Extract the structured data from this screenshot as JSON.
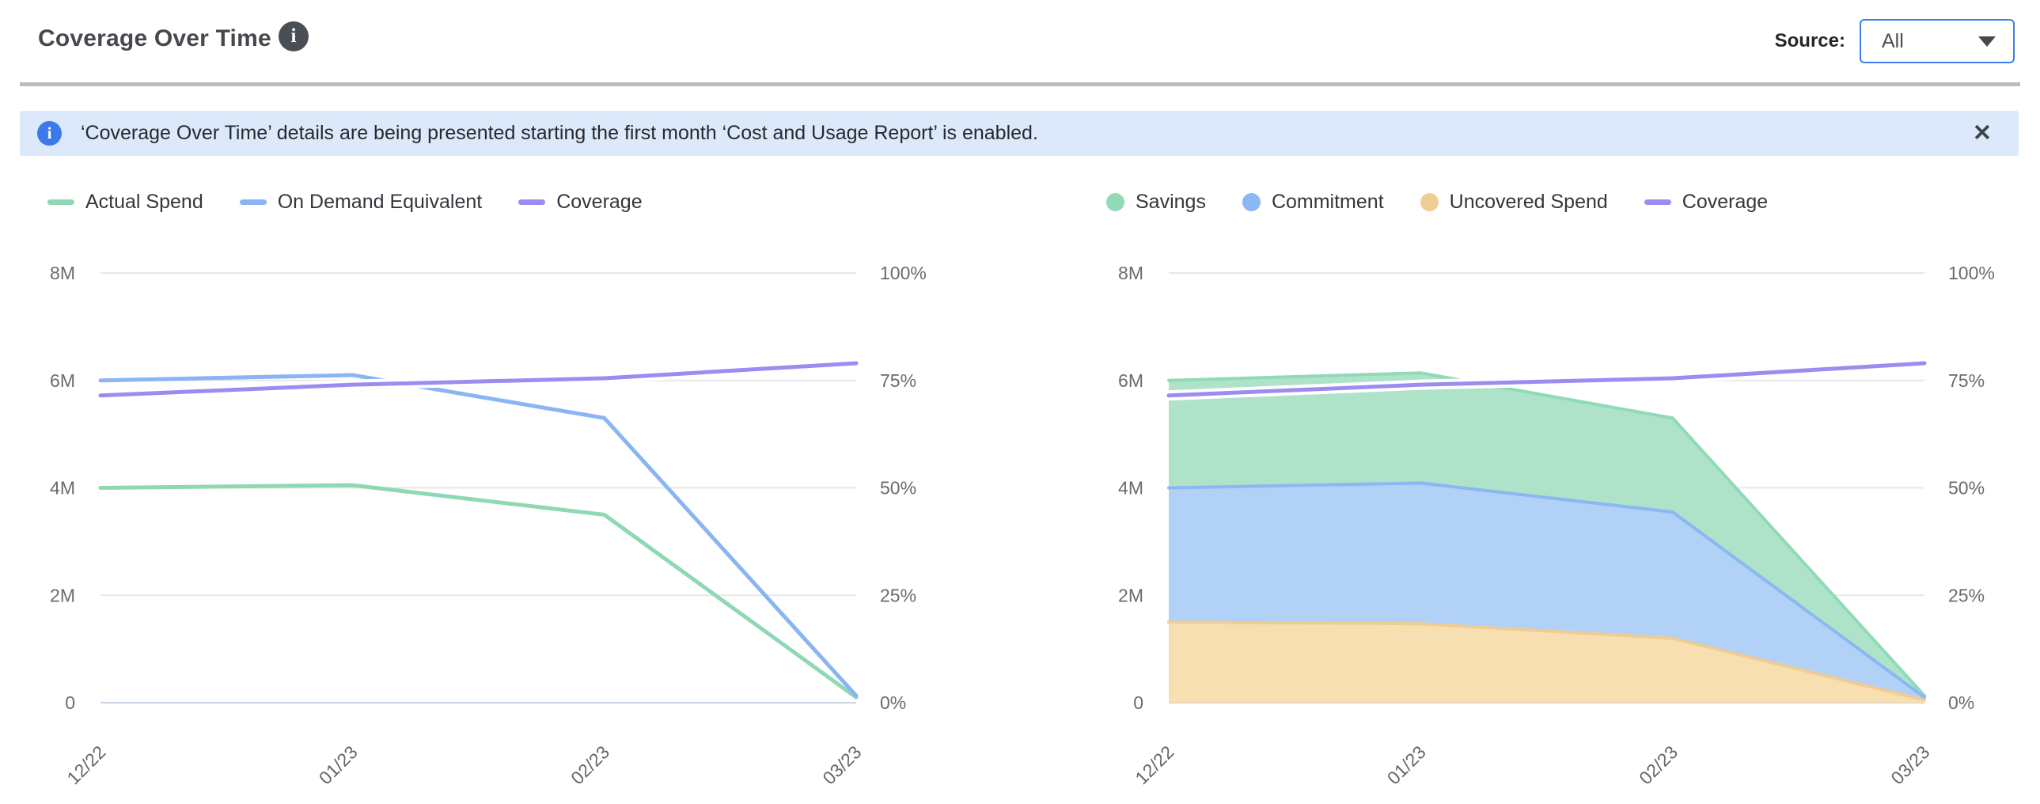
{
  "header": {
    "title": "Coverage Over Time",
    "info_glyph": "i",
    "source_label": "Source:",
    "source_value": "All"
  },
  "banner": {
    "info_glyph": "i",
    "text": "‘Coverage Over Time’ details are being presented starting the first month ‘Cost and Usage Report’ is enabled.",
    "close_glyph": "✕"
  },
  "colors": {
    "accent-blue": "#3f7ef0",
    "banner-bg": "#dce9fb",
    "banner-icon-blue": "#3c79ea",
    "divider-gray": "#bcbcbc",
    "title-gray": "#45484d",
    "axis-label-gray": "#6b6b6b"
  },
  "chart_data": [
    {
      "name": "spend-coverage-line-chart",
      "type": "line",
      "x": [
        "12/22",
        "01/23",
        "02/23",
        "03/23"
      ],
      "y_left": {
        "ticks": [
          "0",
          "2M",
          "4M",
          "6M",
          "8M"
        ],
        "range": [
          0,
          8
        ],
        "unit": "M (spend)"
      },
      "y_right": {
        "ticks": [
          "0%",
          "25%",
          "50%",
          "75%",
          "100%"
        ],
        "range": [
          0,
          100
        ],
        "unit": "% coverage"
      },
      "grid": true,
      "legend_position": "top-left",
      "series": [
        {
          "name": "Actual Spend",
          "color": "#8ed8b4",
          "axis": "left",
          "marker": "dash",
          "values": [
            4.0,
            4.05,
            3.5,
            0.1
          ]
        },
        {
          "name": "On Demand Equivalent",
          "color": "#8ab5f2",
          "axis": "left",
          "marker": "dash",
          "values": [
            6.0,
            6.1,
            5.3,
            0.13
          ]
        },
        {
          "name": "Coverage",
          "color": "#9c8cf2",
          "axis": "right",
          "marker": "dash",
          "halo": true,
          "values": [
            71.5,
            74,
            75.5,
            79
          ]
        }
      ]
    },
    {
      "name": "savings-commitment-area-chart",
      "type": "area",
      "stacked": true,
      "stack_order": [
        "Uncovered Spend",
        "Commitment",
        "Savings"
      ],
      "x": [
        "12/22",
        "01/23",
        "02/23",
        "03/23"
      ],
      "y_left": {
        "ticks": [
          "0",
          "2M",
          "4M",
          "6M",
          "8M"
        ],
        "range": [
          0,
          8
        ],
        "unit": "M (spend)"
      },
      "y_right": {
        "ticks": [
          "0%",
          "25%",
          "50%",
          "75%",
          "100%"
        ],
        "range": [
          0,
          100
        ],
        "unit": "% coverage"
      },
      "grid": true,
      "legend_position": "top-left",
      "series": [
        {
          "name": "Savings",
          "color": "#90dab7",
          "fill": "#aee3c9",
          "axis": "left",
          "marker": "circle",
          "stackedArea": true,
          "values": [
            2.0,
            2.05,
            1.75,
            0.03
          ]
        },
        {
          "name": "Commitment",
          "color": "#8bb7f2",
          "fill": "#b1d1f6",
          "axis": "left",
          "marker": "circle",
          "stackedArea": true,
          "values": [
            2.5,
            2.62,
            2.35,
            0.05
          ]
        },
        {
          "name": "Uncovered Spend",
          "color": "#f0cc95",
          "fill": "#f7dfb2",
          "axis": "left",
          "marker": "circle",
          "stackedArea": true,
          "values": [
            1.5,
            1.47,
            1.2,
            0.05
          ]
        },
        {
          "name": "Coverage",
          "color": "#9c8cf2",
          "axis": "right",
          "marker": "dash",
          "halo": true,
          "values": [
            71.5,
            74,
            75.5,
            79
          ]
        }
      ]
    }
  ]
}
